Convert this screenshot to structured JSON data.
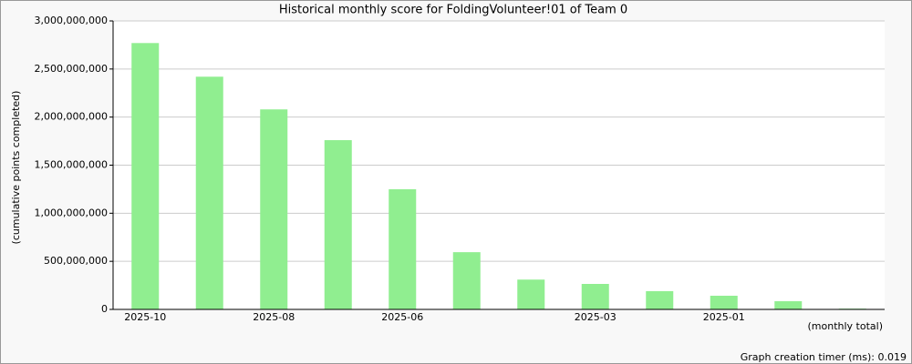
{
  "chart_data": {
    "type": "bar",
    "title": "Historical monthly score for FoldingVolunteer!01 of Team 0",
    "y_label": "(cumulative points completed)",
    "x_label": "(monthly total)",
    "footer": "Graph creation timer (ms): 0.019",
    "categories": [
      "2025-10",
      null,
      "2025-08",
      null,
      "2025-06",
      null,
      null,
      "2025-03",
      null,
      "2025-01",
      null,
      null
    ],
    "values": [
      2770000000,
      2420000000,
      2080000000,
      1760000000,
      1250000000,
      595000000,
      310000000,
      265000000,
      190000000,
      142000000,
      85000000,
      8000000
    ],
    "color": "#90ee90",
    "ylim": [
      0,
      3000000000
    ],
    "yticks": [
      {
        "value": 0,
        "label": "0"
      },
      {
        "value": 500000000,
        "label": "500,000,000"
      },
      {
        "value": 1000000000,
        "label": "1,000,000,000"
      },
      {
        "value": 1500000000,
        "label": "1,500,000,000"
      },
      {
        "value": 2000000000,
        "label": "2,000,000,000"
      },
      {
        "value": 2500000000,
        "label": "2,500,000,000"
      },
      {
        "value": 3000000000,
        "label": "3,000,000,000"
      }
    ],
    "grid": true
  }
}
